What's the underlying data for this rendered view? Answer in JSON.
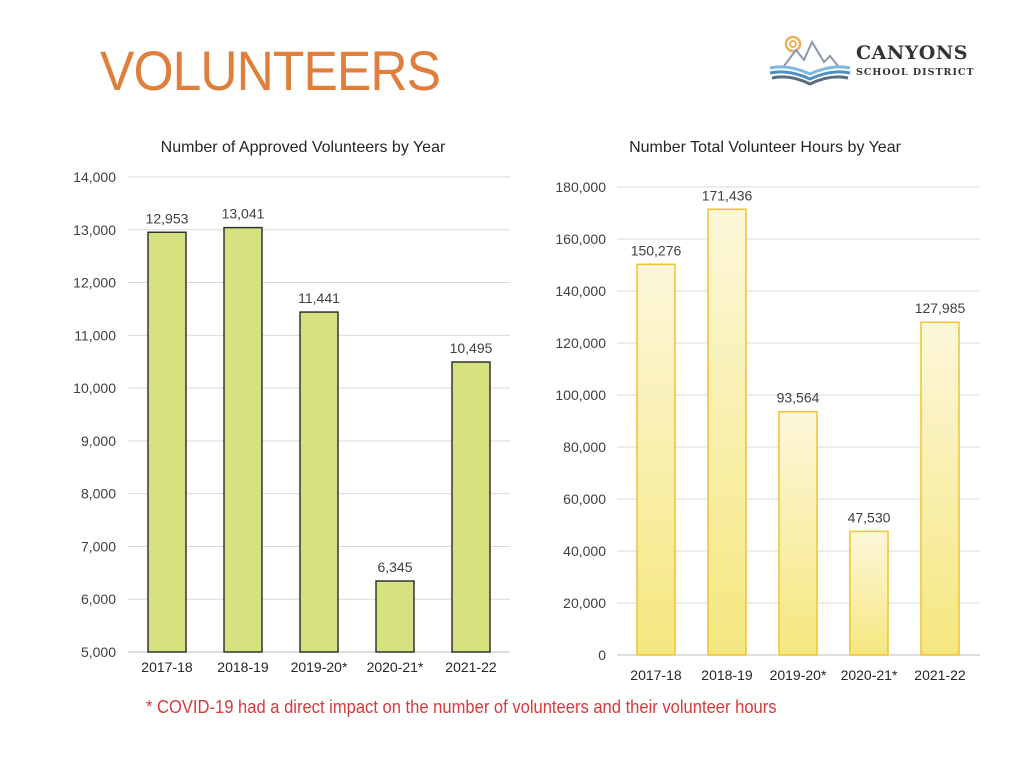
{
  "page": {
    "title": "VOLUNTEERS",
    "logo": {
      "name": "CANYONS",
      "subtitle": "SCHOOL DISTRICT"
    },
    "footnote": "* COVID-19 had a direct impact on the number of volunteers and their volunteer hours"
  },
  "colors": {
    "title": "#E07E3C",
    "footnote": "#D8393A",
    "bar_left": "#D6E17F",
    "bar_right_top": "#FDF6D6",
    "bar_right_bottom": "#F6E98A",
    "bar_right_stroke": "#F0C232"
  },
  "chart_data": [
    {
      "type": "bar",
      "title": "Number of Approved Volunteers by Year",
      "categories": [
        "2017-18",
        "2018-19",
        "2019-20*",
        "2020-21*",
        "2021-22"
      ],
      "values": [
        12953,
        13041,
        11441,
        6345,
        10495
      ],
      "value_labels": [
        "12,953",
        "13,041",
        "11,441",
        "6,345",
        "10,495"
      ],
      "ylim": [
        5000,
        14000
      ],
      "yticks": [
        5000,
        6000,
        7000,
        8000,
        9000,
        10000,
        11000,
        12000,
        13000,
        14000
      ],
      "ytick_labels": [
        "5,000",
        "6,000",
        "7,000",
        "8,000",
        "9,000",
        "10,000",
        "11,000",
        "12,000",
        "13,000",
        "14,000"
      ],
      "xlabel": "",
      "ylabel": "",
      "grid": true
    },
    {
      "type": "bar",
      "title": "Number Total Volunteer Hours by Year",
      "categories": [
        "2017-18",
        "2018-19",
        "2019-20*",
        "2020-21*",
        "2021-22"
      ],
      "values": [
        150276,
        171436,
        93564,
        47530,
        127985
      ],
      "value_labels": [
        "150,276",
        "171,436",
        "93,564",
        "47,530",
        "127,985"
      ],
      "ylim": [
        0,
        180000
      ],
      "yticks": [
        0,
        20000,
        40000,
        60000,
        80000,
        100000,
        120000,
        140000,
        160000,
        180000
      ],
      "ytick_labels": [
        "0",
        "20,000",
        "40,000",
        "60,000",
        "80,000",
        "100,000",
        "120,000",
        "140,000",
        "160,000",
        "180,000"
      ],
      "xlabel": "",
      "ylabel": "",
      "grid": true
    }
  ]
}
